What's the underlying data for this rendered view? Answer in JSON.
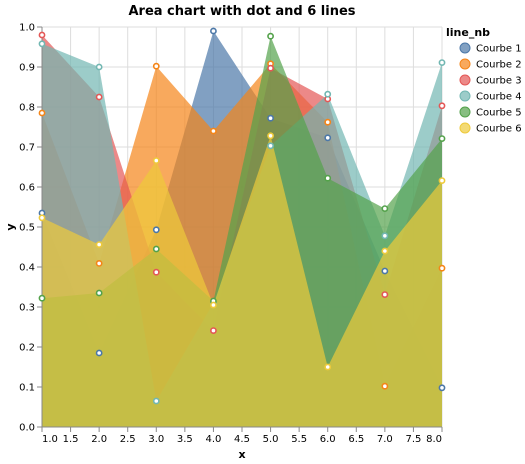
{
  "chart_data": {
    "type": "area",
    "title": "Area chart with dot and 6 lines",
    "xlabel": "x",
    "ylabel": "y",
    "xlim": [
      1,
      8
    ],
    "ylim": [
      0,
      1
    ],
    "x_ticks": [
      "1.0",
      "1.5",
      "2.0",
      "2.5",
      "3.0",
      "3.5",
      "4.0",
      "4.5",
      "5.0",
      "5.5",
      "6.0",
      "6.5",
      "7.0",
      "7.5",
      "8.0"
    ],
    "y_ticks": [
      "0.0",
      "0.1",
      "0.2",
      "0.3",
      "0.4",
      "0.5",
      "0.6",
      "0.7",
      "0.8",
      "0.9",
      "1.0"
    ],
    "grid": true,
    "legend_title": "line_nb",
    "legend_position": "right",
    "x": [
      1,
      2,
      3,
      4,
      5,
      6,
      7,
      8
    ],
    "series": [
      {
        "name": "Courbe 1",
        "color": "#4c78a8",
        "values": [
          0.535,
          0.185,
          0.493,
          0.99,
          0.772,
          0.723,
          0.39,
          0.098
        ]
      },
      {
        "name": "Courbe 2",
        "color": "#f58518",
        "values": [
          0.785,
          0.409,
          0.902,
          0.74,
          0.908,
          0.762,
          0.102,
          0.397
        ]
      },
      {
        "name": "Courbe 3",
        "color": "#e45756",
        "values": [
          0.98,
          0.825,
          0.387,
          0.241,
          0.897,
          0.82,
          0.331,
          0.803
        ]
      },
      {
        "name": "Courbe 4",
        "color": "#72b7b2",
        "values": [
          0.958,
          0.9,
          0.065,
          0.31,
          0.703,
          0.832,
          0.478,
          0.911
        ]
      },
      {
        "name": "Courbe 5",
        "color": "#54a24b",
        "values": [
          0.322,
          0.335,
          0.445,
          0.315,
          0.977,
          0.622,
          0.546,
          0.721
        ]
      },
      {
        "name": "Courbe 6",
        "color": "#eeca3b",
        "values": [
          0.523,
          0.456,
          0.666,
          0.305,
          0.728,
          0.15,
          0.44,
          0.616
        ]
      }
    ]
  }
}
